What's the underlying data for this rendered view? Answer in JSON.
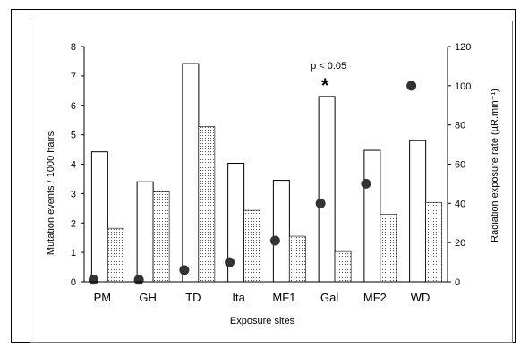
{
  "chart_data": {
    "type": "bar",
    "title": "",
    "xlabel": "Exposure sites",
    "ylabel_left": "Mutation events / 1000 hairs",
    "ylabel_right": "Radiation exposure rate (µR.min⁻¹)",
    "categories": [
      "PM",
      "GH",
      "TD",
      "Ita",
      "MF1",
      "Gal",
      "MF2",
      "WD"
    ],
    "ylim_left": [
      0,
      8
    ],
    "yticks_left": [
      0,
      1,
      2,
      3,
      4,
      5,
      6,
      7,
      8
    ],
    "ylim_right": [
      0,
      120
    ],
    "yticks_right": [
      0,
      20,
      40,
      60,
      80,
      100,
      120
    ],
    "series": [
      {
        "style": "open-bar",
        "axis": "left",
        "values": [
          4.42,
          3.4,
          7.42,
          4.03,
          3.45,
          6.3,
          4.47,
          4.8
        ]
      },
      {
        "style": "dotted-bar",
        "axis": "left",
        "values": [
          1.82,
          3.06,
          5.28,
          2.43,
          1.55,
          1.03,
          2.3,
          2.7
        ]
      },
      {
        "style": "dot",
        "axis": "right",
        "values": [
          1,
          1,
          6,
          10,
          21,
          40,
          50,
          100
        ]
      }
    ],
    "annotations": [
      {
        "text": "p < 0.05",
        "category": "Gal"
      },
      {
        "text": "*",
        "category": "Gal"
      }
    ],
    "grid": false,
    "colors": {
      "bar_fill": "#ffffff",
      "bar_stroke": "#000000",
      "dot": "#333333",
      "pattern": "#555555"
    }
  }
}
